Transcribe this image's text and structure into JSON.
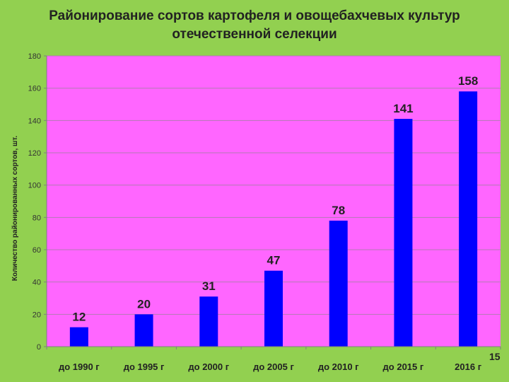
{
  "slide": {
    "page_number": "15"
  },
  "chart_data": {
    "type": "bar",
    "title": "Районирование сортов картофеля и овощебахчевых культур отечественной селекции",
    "ylabel": "Количество районированных сортов, шт.",
    "xlabel": "",
    "categories": [
      "до 1990 г",
      "до 1995 г",
      "до 2000 г",
      "до 2005 г",
      "до 2010 г",
      "до 2015 г",
      "2016 г"
    ],
    "values": [
      12,
      20,
      31,
      47,
      78,
      141,
      158
    ],
    "data_labels": [
      "12",
      "20",
      "31",
      "47",
      "78",
      "141",
      "158"
    ],
    "ylim": [
      0,
      180
    ],
    "yticks": [
      0,
      20,
      40,
      60,
      80,
      100,
      120,
      140,
      160,
      180
    ],
    "ytick_labels": [
      "0",
      "20",
      "40",
      "60",
      "80",
      "100",
      "120",
      "140",
      "160",
      "180"
    ],
    "grid": true,
    "legend": "none",
    "colors": {
      "background": "#92d050",
      "plot_area": "#ff66ff",
      "bar": "#0000ff",
      "gridline": "#b37bb3"
    }
  }
}
